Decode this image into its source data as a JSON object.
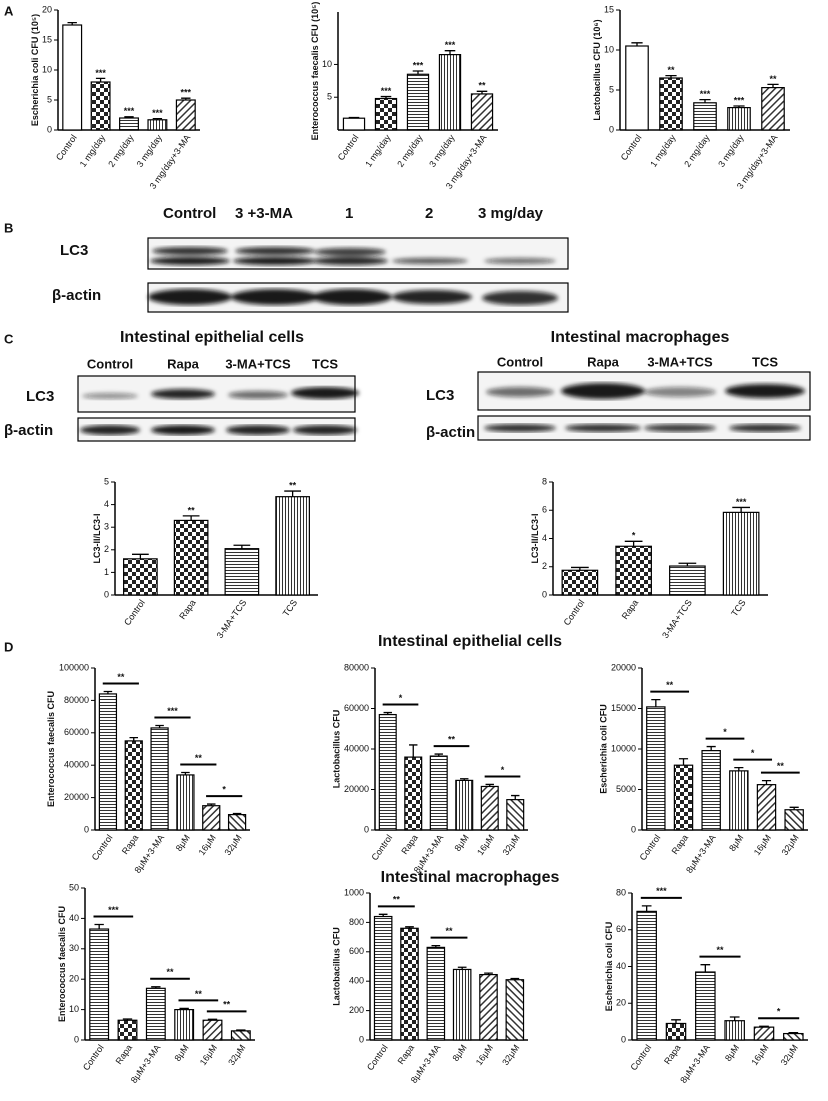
{
  "panel_labels": [
    "A",
    "B",
    "C",
    "D"
  ],
  "blot_b": {
    "lanes": [
      "Control",
      "3 +3-MA",
      "1",
      "2",
      "3 mg/day"
    ],
    "rows": [
      "LC3",
      "β-actin"
    ]
  },
  "blot_c": [
    {
      "title": "Intestinal epithelial cells",
      "lanes": [
        "Control",
        "Rapa",
        "3-MA+TCS",
        "TCS"
      ],
      "rows": [
        "LC3",
        "β-actin"
      ]
    },
    {
      "title": "Intestinal macrophages",
      "lanes": [
        "Control",
        "Rapa",
        "3-MA+TCS",
        "TCS"
      ],
      "rows": [
        "LC3",
        "β-actin"
      ]
    }
  ],
  "section_titles": [
    "Intestinal epithelial cells",
    "Intestinal macrophages"
  ],
  "chart_data": [
    {
      "type": "bar",
      "y_label": "Escherichia coli CFU (10⁵)",
      "categories": [
        "Control",
        "1 mg/day",
        "2 mg/day",
        "3 mg/day",
        "3 mg/day+3-MA"
      ],
      "values": [
        17.5,
        8,
        2,
        1.7,
        5
      ],
      "errors": [
        0.4,
        0.6,
        0.2,
        0.2,
        0.3
      ],
      "patterns": [
        "none",
        "checker",
        "hlines",
        "vlines",
        "diag"
      ],
      "significance": [
        null,
        "***",
        "***",
        "***",
        "***"
      ],
      "ylim": [
        0,
        20
      ],
      "yticks": [
        0,
        5,
        10,
        15,
        20
      ]
    },
    {
      "type": "bar",
      "y_label": "Enterococcus faecalis CFU (10⁵)",
      "categories": [
        "Control",
        "1 mg/day",
        "2 mg/day",
        "3 mg/day",
        "3 mg/day+3-MA"
      ],
      "values": [
        1.8,
        4.8,
        8.5,
        11.5,
        5.5
      ],
      "errors": [
        0.1,
        0.3,
        0.5,
        0.6,
        0.4
      ],
      "patterns": [
        "none",
        "checker",
        "hlines",
        "vlines",
        "diag"
      ],
      "significance": [
        null,
        "***",
        "***",
        "***",
        "**"
      ],
      "ylim": [
        0,
        18
      ],
      "yticks": [
        5,
        10
      ]
    },
    {
      "type": "bar",
      "y_label": "Lactobacillus CFU (10⁶)",
      "categories": [
        "Control",
        "1 mg/day",
        "2 mg/day",
        "3 mg/day",
        "3 mg/day+3-MA"
      ],
      "values": [
        10.5,
        6.5,
        3.4,
        2.8,
        5.3
      ],
      "errors": [
        0.4,
        0.3,
        0.4,
        0.2,
        0.4
      ],
      "patterns": [
        "none",
        "checker",
        "hlines",
        "vlines",
        "diag"
      ],
      "significance": [
        null,
        "**",
        "***",
        "***",
        "**"
      ],
      "ylim": [
        0,
        15
      ],
      "yticks": [
        0,
        5,
        10,
        15
      ]
    },
    {
      "type": "bar",
      "y_label": "LC3-II/LC3-I",
      "categories": [
        "Control",
        "Rapa",
        "3-MA+TCS",
        "TCS"
      ],
      "values": [
        1.6,
        3.3,
        2.05,
        4.35
      ],
      "errors": [
        0.2,
        0.2,
        0.15,
        0.25
      ],
      "patterns": [
        "checker",
        "checker",
        "hlines",
        "vlines"
      ],
      "significance": [
        null,
        "**",
        null,
        "**"
      ],
      "ylim": [
        0,
        5
      ],
      "yticks": [
        0,
        1,
        2,
        3,
        4,
        5
      ]
    },
    {
      "type": "bar",
      "y_label": "LC3-II/LC3-I",
      "categories": [
        "Control",
        "Rapa",
        "3-MA+TCS",
        "TCS"
      ],
      "values": [
        1.75,
        3.45,
        2.05,
        5.85
      ],
      "errors": [
        0.2,
        0.35,
        0.2,
        0.35
      ],
      "patterns": [
        "checker",
        "checker",
        "hlines",
        "vlines"
      ],
      "significance": [
        null,
        "*",
        null,
        "***"
      ],
      "ylim": [
        0,
        8
      ],
      "yticks": [
        0,
        2,
        4,
        6,
        8
      ]
    },
    {
      "type": "bar",
      "y_label": "Enterococcus faecalis CFU",
      "categories": [
        "Control",
        "Rapa",
        "8μM+3-MA",
        "8μM",
        "16μM",
        "32μM"
      ],
      "values": [
        84000,
        55000,
        63000,
        34000,
        15000,
        9500
      ],
      "errors": [
        1500,
        2000,
        1500,
        1500,
        1000,
        700
      ],
      "patterns": [
        "hlines",
        "checker",
        "hlines",
        "vlines",
        "diag",
        "diag2"
      ],
      "comparisons": [
        {
          "from": 0,
          "to": 1,
          "label": "**"
        },
        {
          "from": 2,
          "to": 3,
          "label": "***"
        },
        {
          "from": 3,
          "to": 4,
          "label": "**"
        },
        {
          "from": 4,
          "to": 5,
          "label": "*"
        }
      ],
      "ylim": [
        0,
        100000
      ],
      "yticks": [
        0,
        20000,
        40000,
        60000,
        80000,
        100000
      ]
    },
    {
      "type": "bar",
      "y_label": "Lactobacillus CFU",
      "categories": [
        "Control",
        "Rapa",
        "8μM+3-MA",
        "8μM",
        "16μM",
        "32μM"
      ],
      "values": [
        57000,
        36000,
        36500,
        24500,
        21500,
        15000
      ],
      "errors": [
        1000,
        6000,
        1000,
        800,
        1000,
        2000
      ],
      "patterns": [
        "hlines",
        "checker",
        "hlines",
        "vlines",
        "diag",
        "diag2"
      ],
      "comparisons": [
        {
          "from": 0,
          "to": 1,
          "label": "*"
        },
        {
          "from": 2,
          "to": 3,
          "label": "**"
        },
        {
          "from": 4,
          "to": 5,
          "label": "*"
        }
      ],
      "ylim": [
        0,
        80000
      ],
      "yticks": [
        0,
        20000,
        40000,
        60000,
        80000
      ]
    },
    {
      "type": "bar",
      "y_label": "Escherichia coli CFU",
      "categories": [
        "Control",
        "Rapa",
        "8μM+3-MA",
        "8μM",
        "16μM",
        "32μM"
      ],
      "values": [
        15200,
        8000,
        9800,
        7300,
        5600,
        2500
      ],
      "errors": [
        900,
        800,
        500,
        400,
        500,
        300
      ],
      "patterns": [
        "hlines",
        "checker",
        "hlines",
        "vlines",
        "diag",
        "diag2"
      ],
      "comparisons": [
        {
          "from": 0,
          "to": 1,
          "label": "**"
        },
        {
          "from": 2,
          "to": 3,
          "label": "*"
        },
        {
          "from": 3,
          "to": 4,
          "label": "*"
        },
        {
          "from": 4,
          "to": 5,
          "label": "**"
        }
      ],
      "ylim": [
        0,
        20000
      ],
      "yticks": [
        0,
        5000,
        10000,
        15000,
        20000
      ]
    },
    {
      "type": "bar",
      "y_label": "Enterococcus faecalis CFU",
      "categories": [
        "Control",
        "Rapa",
        "8μM+3-MA",
        "8μM",
        "16μM",
        "32μM"
      ],
      "values": [
        36.5,
        6.5,
        17,
        10,
        6.5,
        3
      ],
      "errors": [
        1.5,
        0.4,
        0.5,
        0.4,
        0.3,
        0.3
      ],
      "patterns": [
        "hlines",
        "checker",
        "hlines",
        "vlines",
        "diag",
        "diag2"
      ],
      "comparisons": [
        {
          "from": 0,
          "to": 1,
          "label": "***"
        },
        {
          "from": 2,
          "to": 3,
          "label": "**"
        },
        {
          "from": 3,
          "to": 4,
          "label": "**"
        },
        {
          "from": 4,
          "to": 5,
          "label": "**"
        }
      ],
      "ylim": [
        0,
        50
      ],
      "yticks": [
        0,
        10,
        20,
        30,
        40,
        50
      ]
    },
    {
      "type": "bar",
      "y_label": "Lactobacillus CFU",
      "categories": [
        "Control",
        "Rapa",
        "8μM+3-MA",
        "8μM",
        "16μM",
        "32μM"
      ],
      "values": [
        840,
        760,
        630,
        480,
        445,
        410
      ],
      "errors": [
        15,
        10,
        12,
        15,
        10,
        8
      ],
      "patterns": [
        "hlines",
        "checker",
        "hlines",
        "vlines",
        "diag",
        "diag2"
      ],
      "comparisons": [
        {
          "from": 0,
          "to": 1,
          "label": "**"
        },
        {
          "from": 2,
          "to": 3,
          "label": "**"
        }
      ],
      "ylim": [
        0,
        1000
      ],
      "yticks": [
        0,
        200,
        400,
        600,
        800,
        1000
      ]
    },
    {
      "type": "bar",
      "y_label": "Escherichia coli CFU",
      "categories": [
        "Control",
        "Rapa",
        "8μM+3-MA",
        "8μM",
        "16μM",
        "32μM"
      ],
      "values": [
        70,
        9,
        37,
        10.5,
        7,
        3.5
      ],
      "errors": [
        3,
        2,
        4,
        2,
        0.5,
        0.5
      ],
      "patterns": [
        "hlines",
        "checker",
        "hlines",
        "vlines",
        "diag",
        "diag2"
      ],
      "comparisons": [
        {
          "from": 0,
          "to": 1,
          "label": "***"
        },
        {
          "from": 2,
          "to": 3,
          "label": "**"
        },
        {
          "from": 4,
          "to": 5,
          "label": "*"
        }
      ],
      "ylim": [
        0,
        80
      ],
      "yticks": [
        0,
        20,
        40,
        60,
        80
      ]
    }
  ]
}
